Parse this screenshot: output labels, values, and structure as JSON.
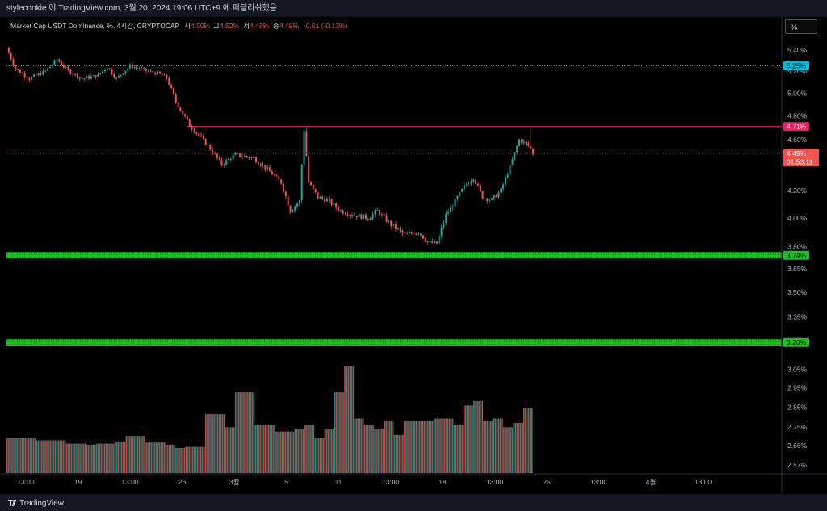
{
  "header": {
    "title": "stylecookie 이 TradingView.com, 3월 20, 2024 19:06 UTC+9 에 퍼블리쉬했음"
  },
  "footer": {
    "brand": "TradingView",
    "logo": "tv-logo-icon"
  },
  "legend": {
    "symbol": "Market Cap USDT Dominance, %, 4시간, CRYPTOCAP",
    "open_label": "시",
    "open": "4.50%",
    "high_label": "고",
    "high": "4.52%",
    "low_label": "저",
    "low": "4.48%",
    "close_label": "종",
    "close": "4.49%",
    "change": "-0.01 (-0.13%)"
  },
  "scale_button": "%",
  "colors": {
    "up": "#26a69a",
    "down": "#ef5350",
    "green_band": "#1fbf1f",
    "cyan": "#00bcd4",
    "red_line": "#f23645",
    "magenta": "#e91e63"
  },
  "price_badges": [
    {
      "label": "5.25%",
      "color": "#00bcd4",
      "text_color": "#000000"
    },
    {
      "label": "4.71%",
      "color": "#e91e63",
      "text_color": "#ffffff"
    },
    {
      "label": "4.49%",
      "sub": "01:53:11",
      "color": "#ef5350",
      "text_color": "#ffffff"
    },
    {
      "label": "3.74%",
      "color": "#1fbf1f",
      "text_color": "#000000"
    },
    {
      "label": "3.20%",
      "color": "#1fbf1f",
      "text_color": "#000000"
    }
  ],
  "chart_data": {
    "type": "candlestick",
    "x_tick_labels": [
      "13:00",
      "19",
      "13:00",
      "26",
      "3월",
      "5",
      "11",
      "13:00",
      "18",
      "13:00",
      "25",
      "13:00",
      "4월",
      "13:00"
    ],
    "y_tick_labels": [
      "5.40%",
      "5.20%",
      "5.00%",
      "4.80%",
      "4.60%",
      "4.20%",
      "4.00%",
      "3.80%",
      "3.65%",
      "3.50%",
      "3.35%",
      "3.05%",
      "2.95%",
      "2.85%",
      "2.75%",
      "2.66%",
      "2.57%"
    ],
    "y_scale": "log",
    "price_path": [
      [
        0,
        5.42
      ],
      [
        4,
        5.22
      ],
      [
        10,
        5.13
      ],
      [
        17,
        5.2
      ],
      [
        22,
        5.31
      ],
      [
        27,
        5.2
      ],
      [
        33,
        5.13
      ],
      [
        40,
        5.16
      ],
      [
        44,
        5.24
      ],
      [
        48,
        5.13
      ],
      [
        54,
        5.25
      ],
      [
        60,
        5.21
      ],
      [
        66,
        5.18
      ],
      [
        70,
        5.14
      ],
      [
        74,
        4.92
      ],
      [
        80,
        4.72
      ],
      [
        88,
        4.55
      ],
      [
        94,
        4.4
      ],
      [
        100,
        4.48
      ],
      [
        108,
        4.45
      ],
      [
        114,
        4.36
      ],
      [
        120,
        4.26
      ],
      [
        124,
        4.05
      ],
      [
        128,
        4.12
      ],
      [
        130,
        4.68
      ],
      [
        132,
        4.26
      ],
      [
        136,
        4.15
      ],
      [
        140,
        4.13
      ],
      [
        146,
        4.05
      ],
      [
        152,
        4.02
      ],
      [
        158,
        4.0
      ],
      [
        162,
        4.05
      ],
      [
        168,
        3.95
      ],
      [
        174,
        3.88
      ],
      [
        180,
        3.9
      ],
      [
        184,
        3.83
      ],
      [
        188,
        3.82
      ],
      [
        192,
        4.02
      ],
      [
        196,
        4.12
      ],
      [
        200,
        4.23
      ],
      [
        204,
        4.3
      ],
      [
        208,
        4.15
      ],
      [
        212,
        4.13
      ],
      [
        216,
        4.2
      ],
      [
        220,
        4.38
      ],
      [
        224,
        4.6
      ],
      [
        228,
        4.55
      ],
      [
        230,
        4.49
      ]
    ],
    "horizontal_lines": [
      {
        "value": 5.25,
        "style": "dotted",
        "color": "#00bcd4"
      },
      {
        "value": 4.71,
        "style": "solid",
        "color": "#e91e63"
      },
      {
        "value": 4.49,
        "style": "dotted",
        "color": "#f23645"
      }
    ],
    "zones": [
      {
        "value": 3.74,
        "color": "#1fbf1f"
      },
      {
        "value": 3.2,
        "color": "#1fbf1f"
      }
    ],
    "volume_levels": [
      1.6,
      1.6,
      1.6,
      1.5,
      1.5,
      1.5,
      1.35,
      1.35,
      1.3,
      1.35,
      1.35,
      1.45,
      1.7,
      1.7,
      1.4,
      1.4,
      1.3,
      1.15,
      1.2,
      1.2,
      2.7,
      2.7,
      2.1,
      3.7,
      3.7,
      2.2,
      2.2,
      1.9,
      1.9,
      2.0,
      2.2,
      1.6,
      2.0,
      3.7,
      4.9,
      2.5,
      2.2,
      2.0,
      2.4,
      1.75,
      2.4,
      2.4,
      2.4,
      2.5,
      2.5,
      2.2,
      3.1,
      3.3,
      2.4,
      2.5,
      2.1,
      2.3,
      3.0
    ]
  }
}
